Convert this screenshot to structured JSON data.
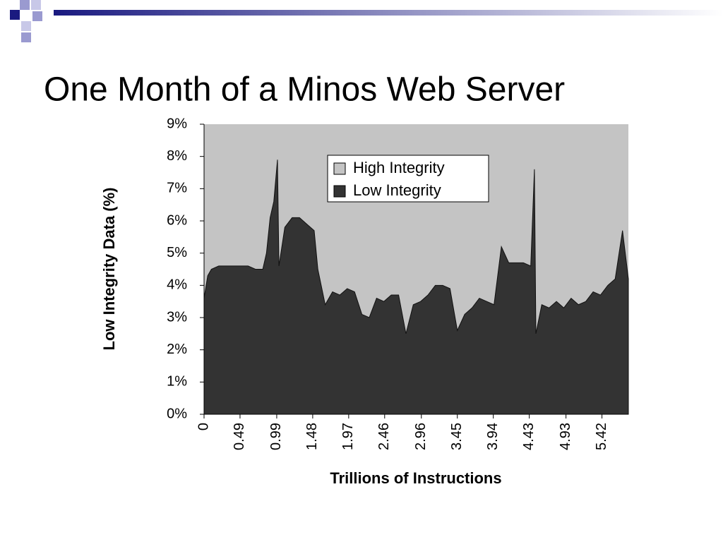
{
  "chart_data": {
    "type": "area",
    "title": "One Month of a Minos Web Server",
    "x_label": "Trillions of Instructions",
    "y_label": "Low Integrity Data (%)",
    "x": [
      0,
      0.05,
      0.1,
      0.2,
      0.3,
      0.4,
      0.5,
      0.6,
      0.7,
      0.8,
      0.85,
      0.9,
      0.95,
      1.0,
      1.02,
      1.1,
      1.2,
      1.3,
      1.4,
      1.5,
      1.55,
      1.65,
      1.75,
      1.85,
      1.95,
      2.05,
      2.15,
      2.25,
      2.35,
      2.45,
      2.55,
      2.65,
      2.75,
      2.85,
      2.95,
      3.05,
      3.15,
      3.25,
      3.35,
      3.45,
      3.55,
      3.65,
      3.75,
      3.85,
      3.95,
      4.05,
      4.15,
      4.25,
      4.35,
      4.45,
      4.5,
      4.52,
      4.6,
      4.7,
      4.8,
      4.9,
      5.0,
      5.1,
      5.2,
      5.3,
      5.4,
      5.5,
      5.6,
      5.7,
      5.78
    ],
    "series": [
      {
        "name": "High Integrity",
        "color": "#c4c4c4"
      },
      {
        "name": "Low Integrity",
        "color": "#333333",
        "values": [
          3.6,
          4.3,
          4.5,
          4.6,
          4.6,
          4.6,
          4.6,
          4.6,
          4.5,
          4.5,
          5.0,
          6.1,
          6.6,
          7.9,
          4.6,
          5.8,
          6.1,
          6.1,
          5.9,
          5.7,
          4.5,
          3.4,
          3.8,
          3.7,
          3.9,
          3.8,
          3.1,
          3.0,
          3.6,
          3.5,
          3.7,
          3.7,
          2.5,
          3.4,
          3.5,
          3.7,
          4.0,
          4.0,
          3.9,
          2.6,
          3.1,
          3.3,
          3.6,
          3.5,
          3.4,
          5.2,
          4.7,
          4.7,
          4.7,
          4.6,
          7.6,
          2.5,
          3.4,
          3.3,
          3.5,
          3.3,
          3.6,
          3.4,
          3.5,
          3.8,
          3.7,
          4.0,
          4.2,
          5.7,
          4.2
        ]
      }
    ],
    "xlim": [
      0,
      5.78
    ],
    "xticks": [
      0,
      0.49,
      0.99,
      1.48,
      1.97,
      2.46,
      2.96,
      3.45,
      3.94,
      4.43,
      4.93,
      5.42
    ],
    "ylim": [
      0,
      9
    ],
    "yticks": [
      {
        "value": 0,
        "label": "0%"
      },
      {
        "value": 1,
        "label": "1%"
      },
      {
        "value": 2,
        "label": "2%"
      },
      {
        "value": 3,
        "label": "3%"
      },
      {
        "value": 4,
        "label": "4%"
      },
      {
        "value": 5,
        "label": "5%"
      },
      {
        "value": 6,
        "label": "6%"
      },
      {
        "value": 7,
        "label": "7%"
      },
      {
        "value": 8,
        "label": "8%"
      },
      {
        "value": 9,
        "label": "9%"
      }
    ],
    "legend": "upper-center"
  }
}
